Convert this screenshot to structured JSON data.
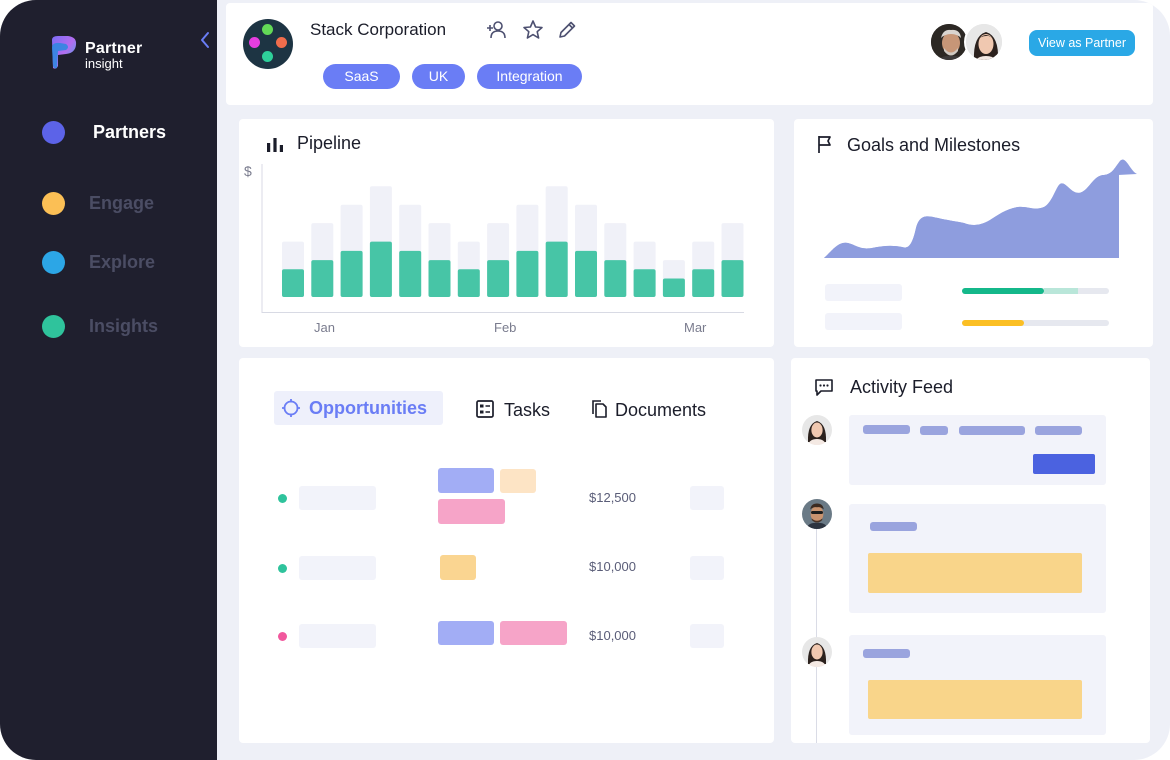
{
  "brand": {
    "name": "Partner",
    "sub": "insight"
  },
  "sidebar": {
    "items": [
      {
        "label": "Partners",
        "color": "#5c63e8"
      },
      {
        "label": "Engage",
        "color": "#fbbf55"
      },
      {
        "label": "Explore",
        "color": "#2ca6e6"
      },
      {
        "label": "Insights",
        "color": "#2fc39c"
      }
    ]
  },
  "header": {
    "company": "Stack Corporation",
    "tags": [
      "SaaS",
      "UK",
      "Integration"
    ],
    "view_button": "View as Partner"
  },
  "pipeline": {
    "title": "Pipeline",
    "y_unit": "$",
    "months": [
      "Jan",
      "Feb",
      "Mar"
    ]
  },
  "goals": {
    "title": "Goals and Milestones",
    "progress": [
      0.56,
      0.42
    ]
  },
  "tabs": [
    "Opportunities",
    "Tasks",
    "Documents"
  ],
  "opportunities": [
    {
      "amount": "$12,500",
      "dot": "#2fc39c"
    },
    {
      "amount": "$10,000",
      "dot": "#2fc39c"
    },
    {
      "amount": "$10,000",
      "dot": "#f1589d"
    }
  ],
  "feed": {
    "title": "Activity Feed"
  },
  "chart_data": {
    "type": "bar",
    "title": "Pipeline",
    "xlabel": "",
    "ylabel": "$",
    "ticks": [
      "Jan",
      "Feb",
      "Mar"
    ],
    "series": [
      {
        "values": [
          3,
          4,
          5,
          6,
          5,
          4,
          3,
          4,
          5,
          6,
          5,
          4,
          3,
          2,
          3,
          4
        ]
      },
      {
        "values": [
          6,
          8,
          10,
          12,
          10,
          8,
          6,
          8,
          10,
          12,
          10,
          8,
          6,
          4,
          6,
          8
        ]
      }
    ],
    "ylim": [
      0,
      13
    ],
    "grid": false
  }
}
